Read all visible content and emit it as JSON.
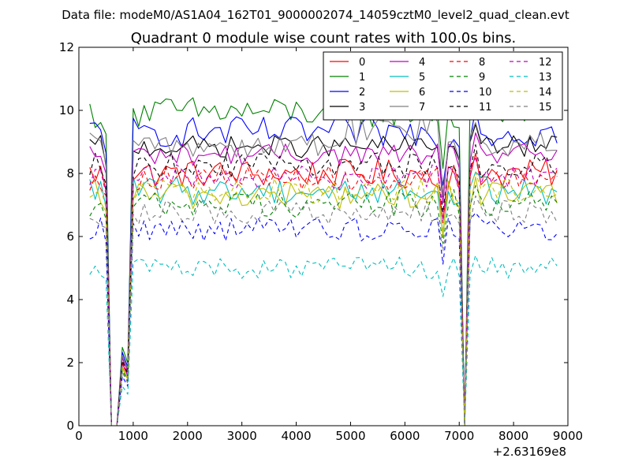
{
  "chart_data": {
    "type": "line",
    "suptitle": "Data file: modeM0/AS1A04_162T01_9000002074_14059cztM0_level2_quad_clean.evt",
    "title": "Quadrant 0 module wise count rates with 100.0s bins.",
    "xlabel": "",
    "ylabel": "",
    "x_offset_label": "+2.63169e8",
    "xlim": [
      0,
      9000
    ],
    "ylim": [
      0,
      12
    ],
    "x_ticks": [
      0,
      1000,
      2000,
      3000,
      4000,
      5000,
      6000,
      7000,
      8000,
      9000
    ],
    "y_ticks": [
      0,
      2,
      4,
      6,
      8,
      10,
      12
    ],
    "grid": false,
    "legend_position": "top-right",
    "legend_columns": 4,
    "x_start": 200,
    "x_step": 100,
    "gaps": [
      {
        "from": 600,
        "to": 800,
        "value": 0
      },
      {
        "at": 7100,
        "value": 0
      }
    ],
    "series": [
      {
        "name": "0",
        "color": "#ff0000",
        "dash": "solid",
        "base": 8.0,
        "amp": 0.45
      },
      {
        "name": "1",
        "color": "#008000",
        "dash": "solid",
        "base": 9.95,
        "amp": 0.5
      },
      {
        "name": "2",
        "color": "#0000ff",
        "dash": "solid",
        "base": 9.3,
        "amp": 0.5
      },
      {
        "name": "3",
        "color": "#000000",
        "dash": "solid",
        "base": 8.85,
        "amp": 0.35
      },
      {
        "name": "4",
        "color": "#bf00bf",
        "dash": "solid",
        "base": 8.6,
        "amp": 0.35
      },
      {
        "name": "5",
        "color": "#00bfbf",
        "dash": "solid",
        "base": 7.45,
        "amp": 0.45
      },
      {
        "name": "6",
        "color": "#bfbf00",
        "dash": "solid",
        "base": 7.3,
        "amp": 0.45
      },
      {
        "name": "7",
        "color": "#808080",
        "dash": "solid",
        "base": 8.9,
        "amp": 0.4
      },
      {
        "name": "8",
        "color": "#ff0000",
        "dash": "dashed",
        "base": 7.85,
        "amp": 0.4
      },
      {
        "name": "9",
        "color": "#008000",
        "dash": "dashed",
        "base": 7.05,
        "amp": 0.45
      },
      {
        "name": "10",
        "color": "#0000ff",
        "dash": "dashed",
        "base": 6.25,
        "amp": 0.4
      },
      {
        "name": "11",
        "color": "#000000",
        "dash": "dashed",
        "base": 8.25,
        "amp": 0.4
      },
      {
        "name": "12",
        "color": "#bf00bf",
        "dash": "dashed",
        "base": 7.9,
        "amp": 0.4
      },
      {
        "name": "13",
        "color": "#00bfbf",
        "dash": "dashed",
        "base": 5.0,
        "amp": 0.35
      },
      {
        "name": "14",
        "color": "#bfbf00",
        "dash": "dashed",
        "base": 7.45,
        "amp": 0.4
      },
      {
        "name": "15",
        "color": "#808080",
        "dash": "dashed",
        "base": 6.75,
        "amp": 0.4
      }
    ]
  }
}
